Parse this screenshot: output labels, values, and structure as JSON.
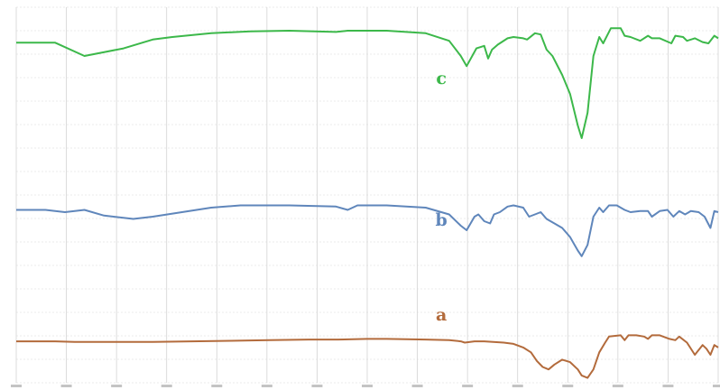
{
  "chart_data": {
    "type": "line",
    "title": "",
    "xlabel": "",
    "ylabel": "",
    "xlim": [
      4000,
      400
    ],
    "x_reversed": true,
    "grid": true,
    "tick_labels_legible": false,
    "stacked_offsets": true,
    "series": [
      {
        "name": "c",
        "color": "#3cb84a",
        "x": [
          4000,
          3800,
          3650,
          3450,
          3300,
          3200,
          3000,
          2800,
          2600,
          2360,
          2300,
          2100,
          1900,
          1780,
          1720,
          1690,
          1640,
          1600,
          1580,
          1560,
          1530,
          1480,
          1450,
          1400,
          1380,
          1340,
          1310,
          1280,
          1250,
          1200,
          1160,
          1120,
          1100,
          1070,
          1040,
          1010,
          990,
          950,
          900,
          880,
          850,
          800,
          760,
          740,
          700,
          640,
          620,
          580,
          560,
          520,
          480,
          450,
          420,
          400
        ],
        "y": [
          80.5,
          80.5,
          70,
          76,
          83,
          85,
          88,
          89.5,
          90,
          89,
          90,
          90,
          88,
          82,
          70,
          62,
          76,
          78,
          68,
          75,
          79,
          84,
          85,
          84,
          83,
          88,
          87,
          75,
          70,
          55,
          40,
          15,
          5,
          25,
          70,
          85,
          80,
          92,
          92,
          86,
          85,
          82,
          86,
          84,
          84,
          80,
          86,
          85,
          82,
          84,
          81,
          80,
          86,
          84
        ]
      },
      {
        "name": "b",
        "color": "#5f86bb",
        "x": [
          4000,
          3850,
          3750,
          3650,
          3550,
          3400,
          3300,
          3150,
          3000,
          2850,
          2750,
          2600,
          2360,
          2300,
          2250,
          2100,
          1900,
          1780,
          1720,
          1690,
          1650,
          1630,
          1600,
          1570,
          1550,
          1520,
          1480,
          1450,
          1400,
          1370,
          1340,
          1310,
          1280,
          1240,
          1200,
          1160,
          1120,
          1100,
          1070,
          1040,
          1010,
          990,
          960,
          920,
          880,
          850,
          800,
          760,
          740,
          700,
          660,
          630,
          600,
          570,
          540,
          500,
          470,
          440,
          420,
          400
        ],
        "y": [
          46,
          46,
          44,
          46,
          41,
          38,
          40,
          44,
          48,
          50,
          50,
          50,
          49,
          46,
          50,
          50,
          48,
          42,
          32,
          28,
          40,
          42,
          36,
          34,
          42,
          44,
          49,
          50,
          48,
          40,
          42,
          44,
          38,
          34,
          30,
          22,
          10,
          5,
          15,
          40,
          48,
          44,
          50,
          50,
          46,
          44,
          45,
          45,
          40,
          45,
          46,
          40,
          45,
          42,
          45,
          44,
          40,
          30,
          45,
          44
        ]
      },
      {
        "name": "a",
        "color": "#b36b3c",
        "x": [
          4000,
          3800,
          3700,
          3500,
          3300,
          3100,
          2900,
          2700,
          2500,
          2350,
          2200,
          2100,
          1900,
          1780,
          1720,
          1700,
          1650,
          1600,
          1500,
          1450,
          1400,
          1360,
          1330,
          1300,
          1270,
          1240,
          1200,
          1160,
          1120,
          1100,
          1070,
          1040,
          1010,
          980,
          960,
          900,
          880,
          860,
          820,
          780,
          760,
          740,
          700,
          650,
          620,
          600,
          560,
          520,
          480,
          460,
          440,
          420,
          400
        ],
        "y": [
          31,
          31,
          30.5,
          30.5,
          30.5,
          31,
          31.5,
          32,
          32.5,
          32.5,
          33,
          33,
          32.5,
          32,
          31,
          30,
          31,
          31,
          30,
          29,
          26,
          22,
          15,
          10,
          8,
          12,
          16,
          14,
          8,
          3,
          1,
          8,
          22,
          30,
          35,
          36,
          32,
          36,
          36,
          35,
          33,
          36,
          36,
          33,
          32,
          35,
          30,
          20,
          28,
          25,
          20,
          28,
          26
        ]
      }
    ],
    "trace_labels": [
      "c",
      "b",
      "a"
    ]
  }
}
